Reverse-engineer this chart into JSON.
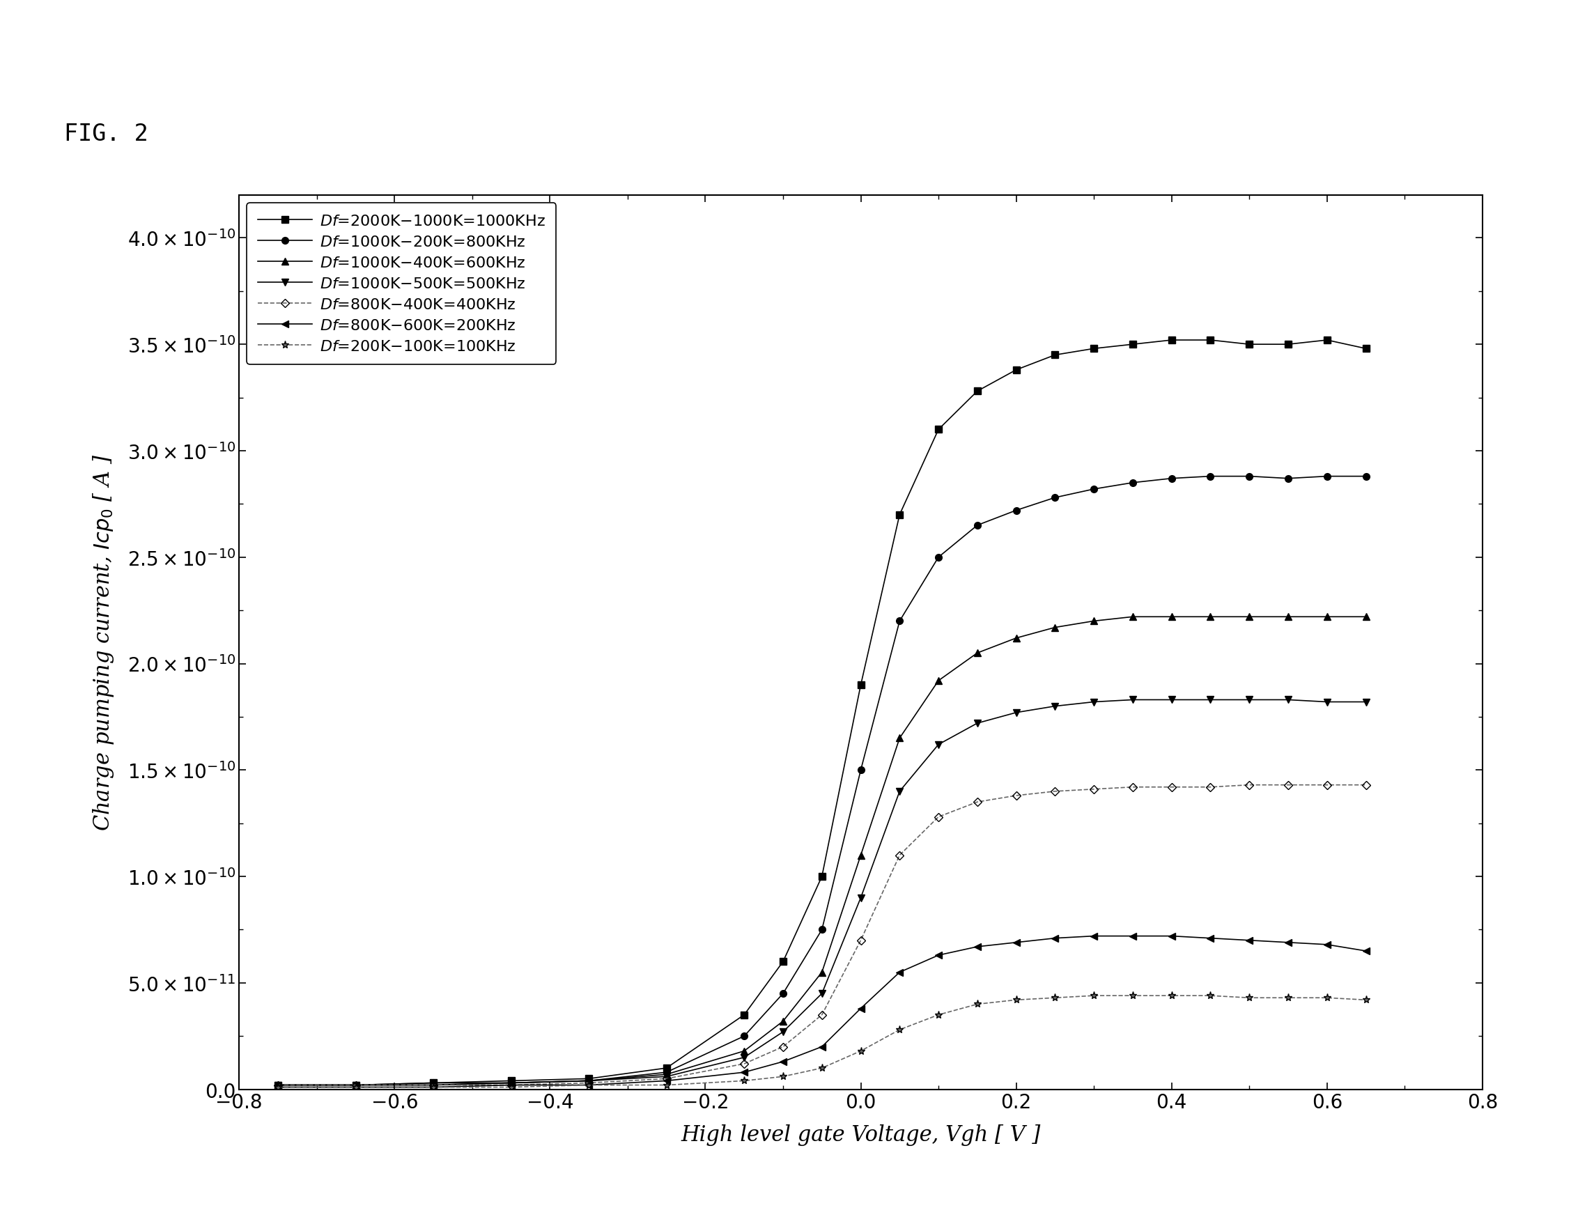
{
  "fig_label": "FIG. 2",
  "xlabel": "High level gate Voltage, Vgh [ V ]",
  "ylabel": "Charge pumping current, Icp₀ [ A ]",
  "xlim": [
    -0.8,
    0.8
  ],
  "ylim": [
    0.0,
    4.2e-10
  ],
  "ytick_vals": [
    0.0,
    5e-11,
    1e-10,
    1.5e-10,
    2e-10,
    2.5e-10,
    3e-10,
    3.5e-10,
    4e-10
  ],
  "xticks": [
    -0.8,
    -0.6,
    -0.4,
    -0.2,
    0.0,
    0.2,
    0.4,
    0.6,
    0.8
  ],
  "series": [
    {
      "label": "Df=2000K-1000K=1000KHz",
      "marker": "s",
      "linestyle": "-",
      "color": "#000000",
      "markersize": 7,
      "fillstyle": "full",
      "x": [
        -0.75,
        -0.65,
        -0.55,
        -0.45,
        -0.35,
        -0.25,
        -0.15,
        -0.1,
        -0.05,
        0.0,
        0.05,
        0.1,
        0.15,
        0.2,
        0.25,
        0.3,
        0.35,
        0.4,
        0.45,
        0.5,
        0.55,
        0.6,
        0.65
      ],
      "y": [
        2e-12,
        2e-12,
        3e-12,
        4e-12,
        5e-12,
        1e-11,
        3.5e-11,
        6e-11,
        1e-10,
        1.9e-10,
        2.7e-10,
        3.1e-10,
        3.28e-10,
        3.38e-10,
        3.45e-10,
        3.48e-10,
        3.5e-10,
        3.52e-10,
        3.52e-10,
        3.5e-10,
        3.5e-10,
        3.52e-10,
        3.48e-10
      ]
    },
    {
      "label": "Df=1000K-200K=800KHz",
      "marker": "o",
      "linestyle": "-",
      "color": "#000000",
      "markersize": 7,
      "fillstyle": "full",
      "x": [
        -0.75,
        -0.65,
        -0.55,
        -0.45,
        -0.35,
        -0.25,
        -0.15,
        -0.1,
        -0.05,
        0.0,
        0.05,
        0.1,
        0.15,
        0.2,
        0.25,
        0.3,
        0.35,
        0.4,
        0.45,
        0.5,
        0.55,
        0.6,
        0.65
      ],
      "y": [
        2e-12,
        2e-12,
        3e-12,
        3e-12,
        4e-12,
        8e-12,
        2.5e-11,
        4.5e-11,
        7.5e-11,
        1.5e-10,
        2.2e-10,
        2.5e-10,
        2.65e-10,
        2.72e-10,
        2.78e-10,
        2.82e-10,
        2.85e-10,
        2.87e-10,
        2.88e-10,
        2.88e-10,
        2.87e-10,
        2.88e-10,
        2.88e-10
      ]
    },
    {
      "label": "Df=1000K-400K=600KHz",
      "marker": "^",
      "linestyle": "-",
      "color": "#000000",
      "markersize": 7,
      "fillstyle": "full",
      "x": [
        -0.75,
        -0.65,
        -0.55,
        -0.45,
        -0.35,
        -0.25,
        -0.15,
        -0.1,
        -0.05,
        0.0,
        0.05,
        0.1,
        0.15,
        0.2,
        0.25,
        0.3,
        0.35,
        0.4,
        0.45,
        0.5,
        0.55,
        0.6,
        0.65
      ],
      "y": [
        2e-12,
        2e-12,
        2e-12,
        3e-12,
        4e-12,
        7e-12,
        1.8e-11,
        3.2e-11,
        5.5e-11,
        1.1e-10,
        1.65e-10,
        1.92e-10,
        2.05e-10,
        2.12e-10,
        2.17e-10,
        2.2e-10,
        2.22e-10,
        2.22e-10,
        2.22e-10,
        2.22e-10,
        2.22e-10,
        2.22e-10,
        2.22e-10
      ]
    },
    {
      "label": "Df=1000K-500K=500KHz",
      "marker": "v",
      "linestyle": "-",
      "color": "#000000",
      "markersize": 7,
      "fillstyle": "full",
      "x": [
        -0.75,
        -0.65,
        -0.55,
        -0.45,
        -0.35,
        -0.25,
        -0.15,
        -0.1,
        -0.05,
        0.0,
        0.05,
        0.1,
        0.15,
        0.2,
        0.25,
        0.3,
        0.35,
        0.4,
        0.45,
        0.5,
        0.55,
        0.6,
        0.65
      ],
      "y": [
        2e-12,
        2e-12,
        2e-12,
        3e-12,
        4e-12,
        6e-12,
        1.5e-11,
        2.7e-11,
        4.5e-11,
        9e-11,
        1.4e-10,
        1.62e-10,
        1.72e-10,
        1.77e-10,
        1.8e-10,
        1.82e-10,
        1.83e-10,
        1.83e-10,
        1.83e-10,
        1.83e-10,
        1.83e-10,
        1.82e-10,
        1.82e-10
      ]
    },
    {
      "label": "Df=800K-400K=400KHz",
      "marker": "D",
      "linestyle": "--",
      "color": "#666666",
      "markersize": 6,
      "fillstyle": "none",
      "x": [
        -0.75,
        -0.65,
        -0.55,
        -0.45,
        -0.35,
        -0.25,
        -0.15,
        -0.1,
        -0.05,
        0.0,
        0.05,
        0.1,
        0.15,
        0.2,
        0.25,
        0.3,
        0.35,
        0.4,
        0.45,
        0.5,
        0.55,
        0.6,
        0.65
      ],
      "y": [
        2e-12,
        2e-12,
        2e-12,
        2e-12,
        3e-12,
        5e-12,
        1.2e-11,
        2e-11,
        3.5e-11,
        7e-11,
        1.1e-10,
        1.28e-10,
        1.35e-10,
        1.38e-10,
        1.4e-10,
        1.41e-10,
        1.42e-10,
        1.42e-10,
        1.42e-10,
        1.43e-10,
        1.43e-10,
        1.43e-10,
        1.43e-10
      ]
    },
    {
      "label": "Df=800K-600K=200KHz",
      "marker": "<",
      "linestyle": "-",
      "color": "#000000",
      "markersize": 7,
      "fillstyle": "full",
      "x": [
        -0.75,
        -0.65,
        -0.55,
        -0.45,
        -0.35,
        -0.25,
        -0.15,
        -0.1,
        -0.05,
        0.0,
        0.05,
        0.1,
        0.15,
        0.2,
        0.25,
        0.3,
        0.35,
        0.4,
        0.45,
        0.5,
        0.55,
        0.6,
        0.65
      ],
      "y": [
        1e-12,
        1e-12,
        1e-12,
        2e-12,
        2e-12,
        4e-12,
        8e-12,
        1.3e-11,
        2e-11,
        3.8e-11,
        5.5e-11,
        6.3e-11,
        6.7e-11,
        6.9e-11,
        7.1e-11,
        7.2e-11,
        7.2e-11,
        7.2e-11,
        7.1e-11,
        7e-11,
        6.9e-11,
        6.8e-11,
        6.5e-11
      ]
    },
    {
      "label": "Df=200K-100K=100KHz",
      "marker": "*",
      "linestyle": "--",
      "color": "#666666",
      "markersize": 8,
      "fillstyle": "full",
      "x": [
        -0.75,
        -0.65,
        -0.55,
        -0.45,
        -0.35,
        -0.25,
        -0.15,
        -0.1,
        -0.05,
        0.0,
        0.05,
        0.1,
        0.15,
        0.2,
        0.25,
        0.3,
        0.35,
        0.4,
        0.45,
        0.5,
        0.55,
        0.6,
        0.65
      ],
      "y": [
        1e-12,
        1e-12,
        1e-12,
        1e-12,
        2e-12,
        2e-12,
        4e-12,
        6e-12,
        1e-11,
        1.8e-11,
        2.8e-11,
        3.5e-11,
        4e-11,
        4.2e-11,
        4.3e-11,
        4.4e-11,
        4.4e-11,
        4.4e-11,
        4.4e-11,
        4.3e-11,
        4.3e-11,
        4.3e-11,
        4.2e-11
      ]
    }
  ]
}
